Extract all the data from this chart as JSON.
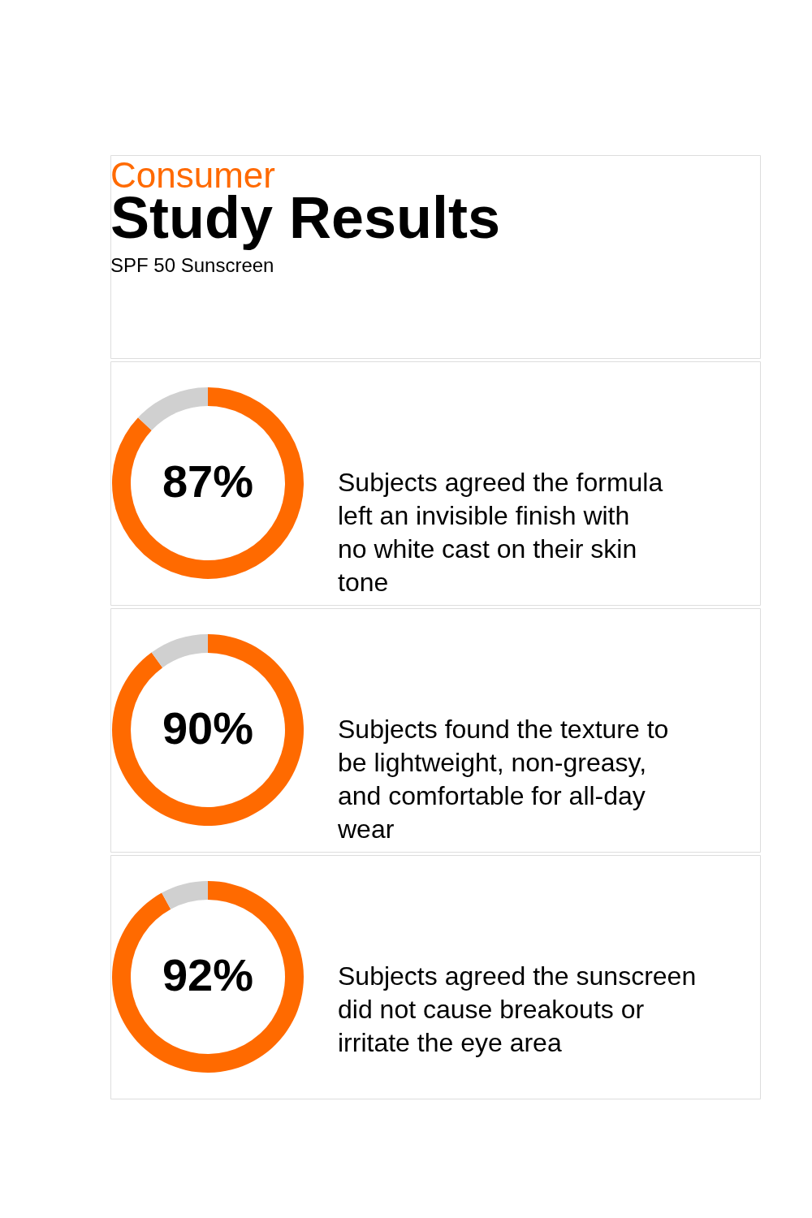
{
  "chart_data": [
    {
      "type": "other",
      "title": "Consumer",
      "subtitle": "Study Results",
      "annotations": [
        "SPF 50 Sunscreen"
      ]
    },
    {
      "type": "donut",
      "categories": [
        null,
        null
      ],
      "values": [
        87,
        13
      ],
      "colors": [
        "#ff6a00",
        "#d0d0d0"
      ],
      "value_labels": [
        "87%",
        null
      ],
      "annotations": [
        "Subjects agreed the formula left an invisible finish with no white cast on their skin tone"
      ]
    },
    {
      "type": "donut",
      "categories": [
        null,
        null
      ],
      "values": [
        90,
        10
      ],
      "colors": [
        "#ff6a00",
        "#d0d0d0"
      ],
      "value_labels": [
        "90%",
        null
      ],
      "annotations": [
        "Subjects found the texture to be lightweight, non-greasy, and comfortable for all-day wear"
      ]
    },
    {
      "type": "donut",
      "categories": [
        null,
        null
      ],
      "values": [
        92,
        8
      ],
      "colors": [
        "#ff6a00",
        "#d0d0d0"
      ],
      "value_labels": [
        "92%",
        null
      ],
      "annotations": [
        "Subjects agreed the sunscreen did not cause breakouts or irritate the eye area"
      ]
    }
  ]
}
